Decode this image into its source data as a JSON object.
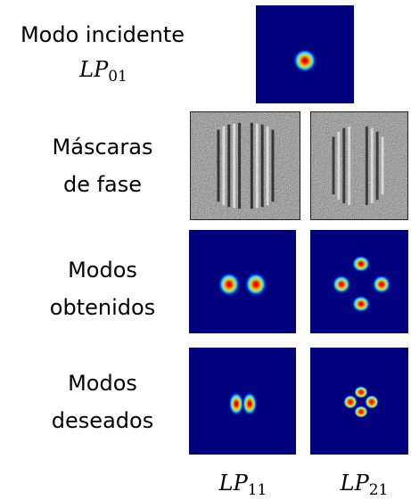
{
  "labels": {
    "incident_line1": "Modo incidente",
    "incident_mode": "LP",
    "incident_sub": "01",
    "masks_line1": "Máscaras",
    "masks_line2": "de fase",
    "obtained_line1": "Modos",
    "obtained_line2": "obtenidos",
    "desired_line1": "Modos",
    "desired_line2": "deseados",
    "col1_mode": "LP",
    "col1_sub": "11",
    "col2_mode": "LP",
    "col2_sub": "21"
  },
  "colors": {
    "field_background": "#00007f",
    "hot_core": "#e30000",
    "warm": "#ffd100",
    "cool": "#00c8ff"
  }
}
